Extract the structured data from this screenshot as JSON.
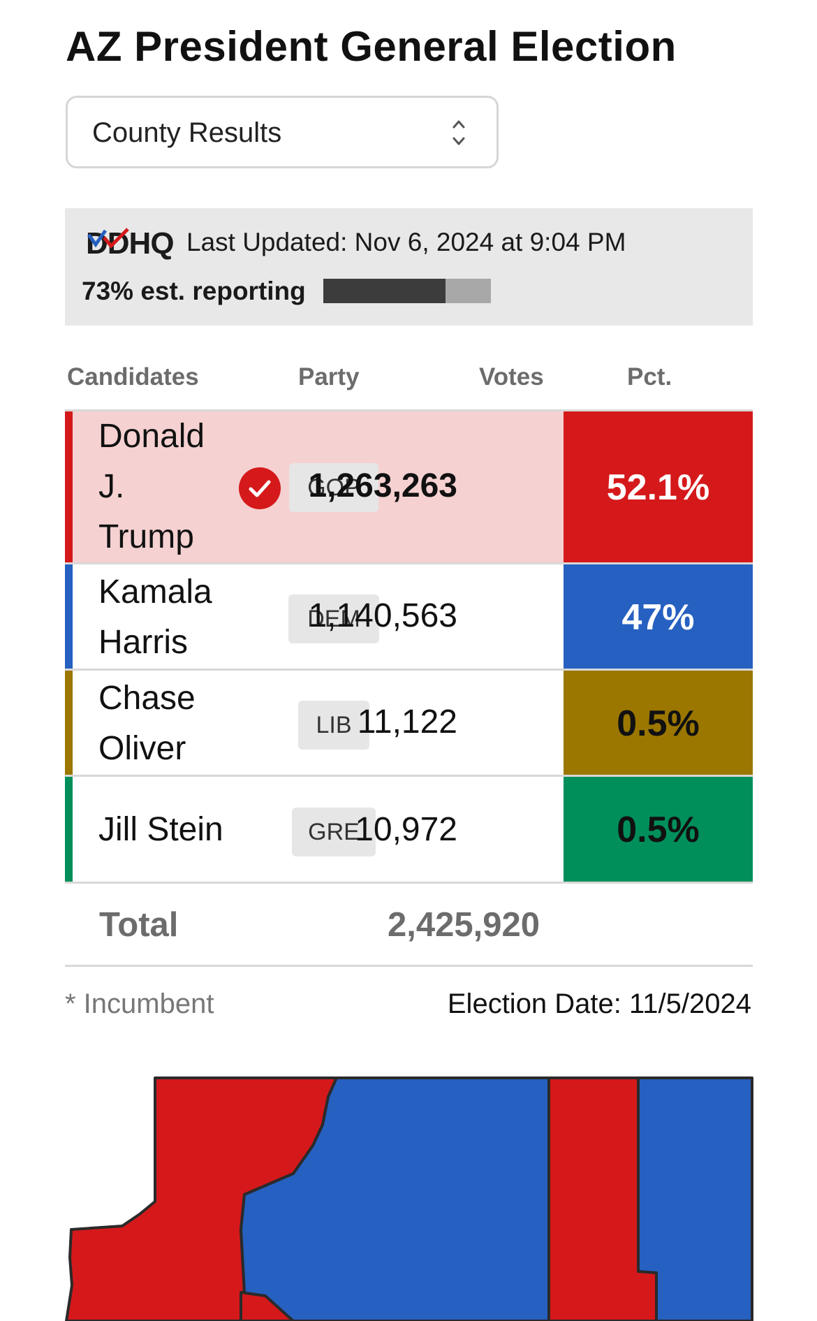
{
  "page": {
    "title": "AZ President General Election"
  },
  "view_select": {
    "selected": "County Results"
  },
  "status": {
    "logo_text": "DDHQ",
    "last_updated": "Last Updated: Nov 6, 2024 at 9:04 PM",
    "reporting_label": "73% est. reporting",
    "reporting_fraction": 0.73
  },
  "table": {
    "headers": {
      "candidates": "Candidates",
      "party": "Party",
      "votes": "Votes",
      "pct": "Pct."
    },
    "rows": [
      {
        "name": "Donald J. Trump",
        "name_lines": [
          "Donald",
          "J.",
          "Trump"
        ],
        "party": "GOP",
        "votes": "1,263,263",
        "pct": "52.1%",
        "winner": true,
        "color": "#d5191b",
        "row_bg": "#f6d1d1"
      },
      {
        "name": "Kamala Harris",
        "name_lines": [
          "Kamala",
          "Harris"
        ],
        "party": "DEM",
        "votes": "1,140,563",
        "pct": "47%",
        "winner": false,
        "color": "#2660c0",
        "row_bg": "#ffffff"
      },
      {
        "name": "Chase Oliver",
        "name_lines": [
          "Chase",
          "Oliver"
        ],
        "party": "LIB",
        "votes": "11,122",
        "pct": "0.5%",
        "winner": false,
        "color": "#9b7700",
        "row_bg": "#ffffff"
      },
      {
        "name": "Jill Stein",
        "name_lines": [
          "Jill Stein"
        ],
        "party": "GRE",
        "votes": "10,972",
        "pct": "0.5%",
        "winner": false,
        "color": "#008f5b",
        "row_bg": "#ffffff"
      }
    ],
    "total_label": "Total",
    "total_votes": "2,425,920"
  },
  "footer": {
    "incumbent_note": "* Incumbent",
    "election_date": "Election Date: 11/5/2024"
  },
  "map": {
    "colors": {
      "rep": "#d5191b",
      "dem": "#2660c0",
      "border": "#2a2a2a"
    }
  }
}
